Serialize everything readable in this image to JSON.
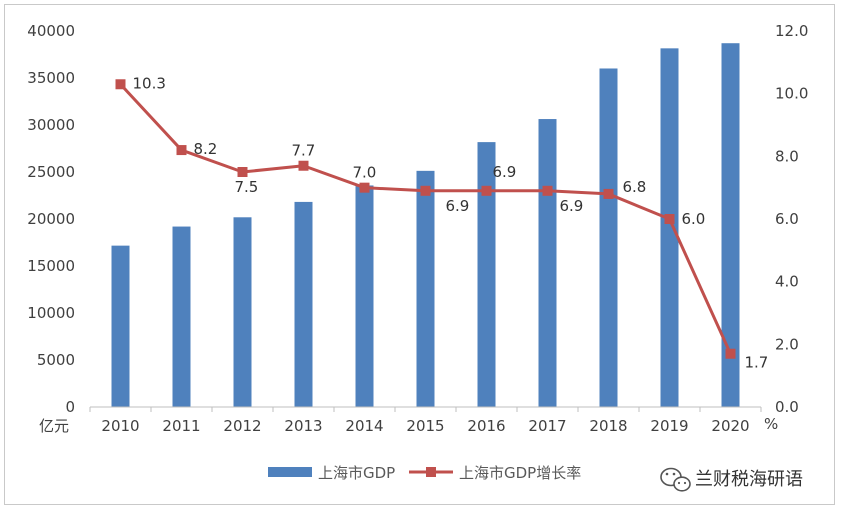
{
  "chart_data": {
    "type": "bar+line",
    "categories": [
      "2010",
      "2011",
      "2012",
      "2013",
      "2014",
      "2015",
      "2016",
      "2017",
      "2018",
      "2019",
      "2020"
    ],
    "series": [
      {
        "name": "上海市GDP",
        "type": "bar",
        "axis": "left",
        "color": "#4f81bd",
        "values": [
          17166,
          19196,
          20182,
          21818,
          23568,
          25123,
          28179,
          30633,
          36012,
          38155,
          38701
        ]
      },
      {
        "name": "上海市GDP增长率",
        "type": "line",
        "axis": "right",
        "color": "#c0504d",
        "values": [
          10.3,
          8.2,
          7.5,
          7.7,
          7.0,
          6.9,
          6.9,
          6.9,
          6.8,
          6.0,
          1.7
        ],
        "labels": [
          "10.3",
          "8.2",
          "7.5",
          "7.7",
          "7.0",
          "6.9",
          "6.9",
          "6.9",
          "6.8",
          "6.0",
          "1.7"
        ]
      }
    ],
    "y_left": {
      "unit": "亿元",
      "ylim": [
        0,
        40000
      ],
      "ticks": [
        "0",
        "5000",
        "10000",
        "15000",
        "20000",
        "25000",
        "30000",
        "35000",
        "40000"
      ]
    },
    "y_right": {
      "unit": "%",
      "ylim": [
        0,
        12
      ],
      "ticks": [
        "0.0",
        "2.0",
        "4.0",
        "6.0",
        "8.0",
        "10.0",
        "12.0"
      ]
    },
    "grid": false,
    "legend": "bottom"
  },
  "watermark": {
    "icon": "wechat-icon",
    "text": "兰财税海研语"
  }
}
